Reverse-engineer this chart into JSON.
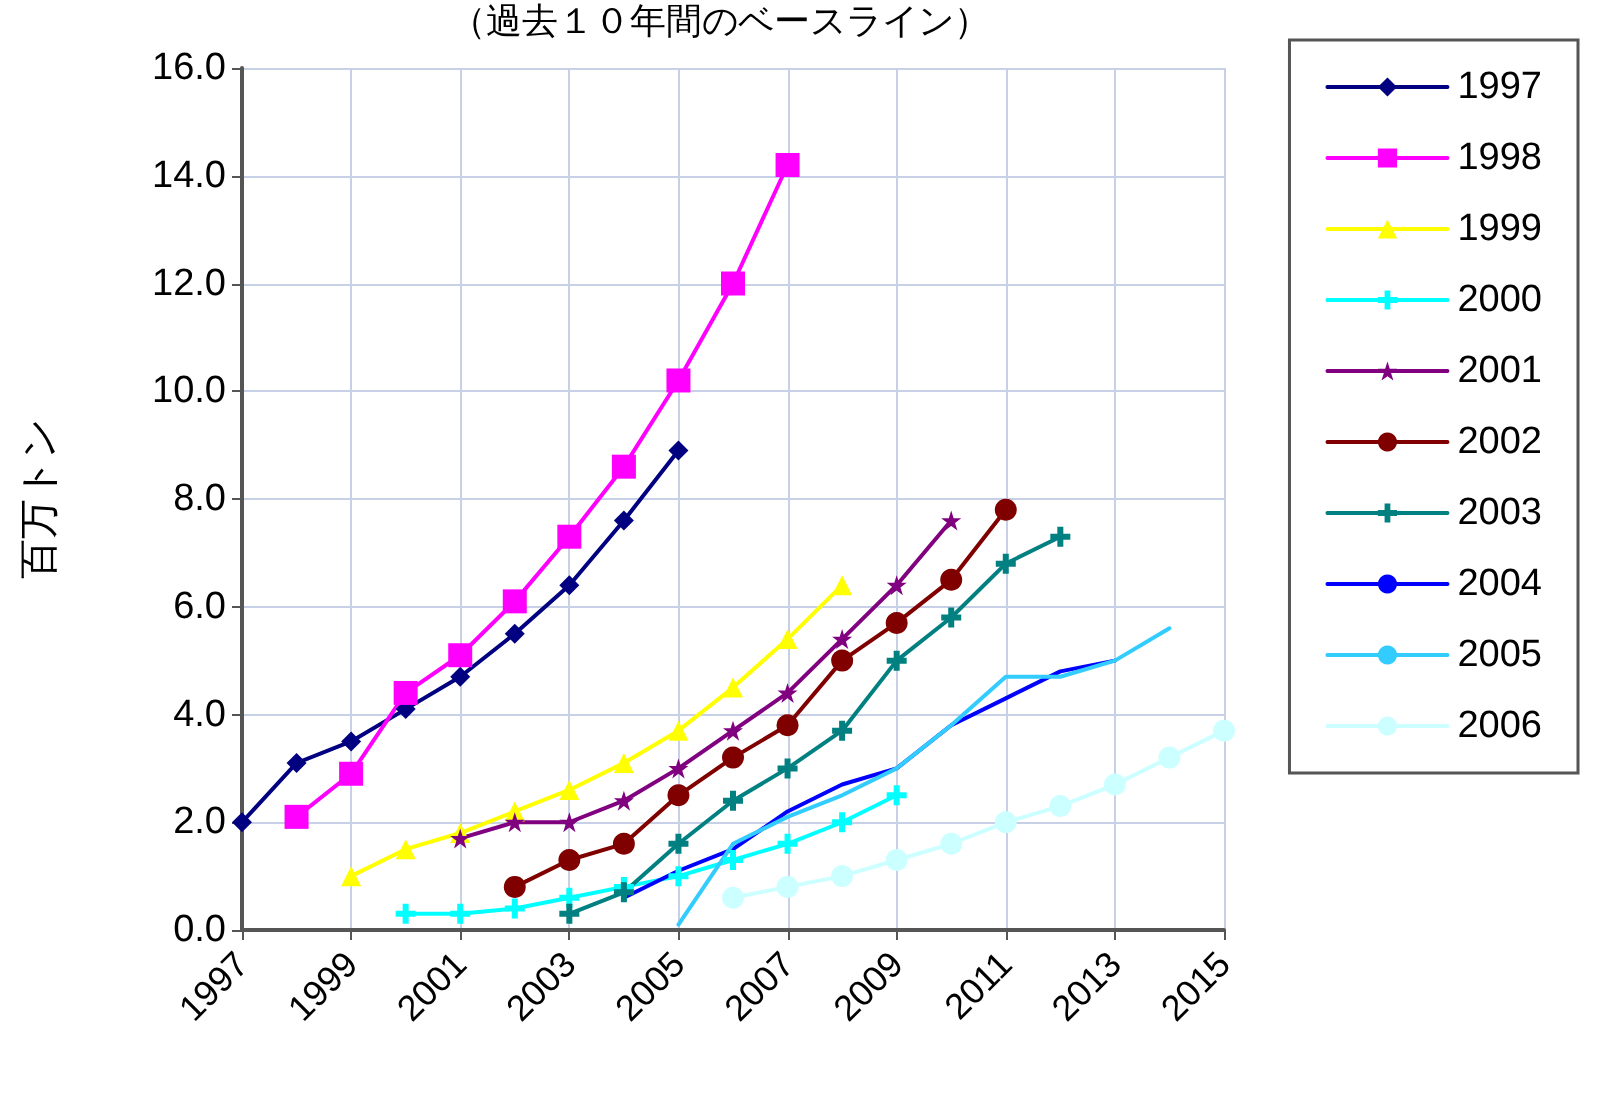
{
  "chart_data": {
    "type": "line",
    "title": "（過去１０年間のベースライン）",
    "ylabel": "百万トン",
    "xlim": [
      1997,
      2015
    ],
    "xticks": [
      1997,
      1999,
      2001,
      2003,
      2005,
      2007,
      2009,
      2011,
      2013,
      2015
    ],
    "ylim": [
      0,
      16
    ],
    "yticks": [
      {
        "value": 0,
        "label": "0.0"
      },
      {
        "value": 2,
        "label": "2.0"
      },
      {
        "value": 4,
        "label": "4.0"
      },
      {
        "value": 6,
        "label": "6.0"
      },
      {
        "value": 8,
        "label": "8.0"
      },
      {
        "value": 10,
        "label": "10.0"
      },
      {
        "value": 12,
        "label": "12.0"
      },
      {
        "value": 14,
        "label": "14.0"
      },
      {
        "value": 16,
        "label": "16.0"
      }
    ],
    "grid": true,
    "legend": "right",
    "line_style": "solid",
    "series": [
      {
        "name": "1997",
        "color": "#000080",
        "marker": "diamond",
        "x": [
          1997,
          1998,
          1999,
          2000,
          2001,
          2002,
          2003,
          2004,
          2005
        ],
        "values": [
          2.0,
          3.1,
          3.5,
          4.1,
          4.7,
          5.5,
          6.4,
          7.6,
          8.9
        ]
      },
      {
        "name": "1998",
        "color": "#ff00ff",
        "marker": "square",
        "x": [
          1998,
          1999,
          2000,
          2001,
          2002,
          2003,
          2004,
          2005,
          2006,
          2007
        ],
        "values": [
          2.1,
          2.9,
          4.4,
          5.1,
          6.1,
          7.3,
          8.6,
          10.2,
          12.0,
          14.2
        ]
      },
      {
        "name": "1999",
        "color": "#ffff00",
        "marker": "triangle",
        "x": [
          1999,
          2000,
          2001,
          2002,
          2003,
          2004,
          2005,
          2006,
          2007,
          2008
        ],
        "values": [
          1.0,
          1.5,
          1.8,
          2.2,
          2.6,
          3.1,
          3.7,
          4.5,
          5.4,
          6.4
        ]
      },
      {
        "name": "2000",
        "color": "#00ffff",
        "marker": "cross",
        "x": [
          2000,
          2001,
          2002,
          2003,
          2004,
          2005,
          2006,
          2007,
          2008,
          2009
        ],
        "values": [
          0.3,
          0.3,
          0.4,
          0.6,
          0.8,
          1.0,
          1.3,
          1.6,
          2.0,
          2.5
        ]
      },
      {
        "name": "2001",
        "color": "#800080",
        "marker": "star",
        "x": [
          2001,
          2002,
          2003,
          2004,
          2005,
          2006,
          2007,
          2008,
          2009,
          2010
        ],
        "values": [
          1.7,
          2.0,
          2.0,
          2.4,
          3.0,
          3.7,
          4.4,
          5.4,
          6.4,
          7.6
        ]
      },
      {
        "name": "2002",
        "color": "#800000",
        "marker": "circle",
        "x": [
          2002,
          2003,
          2004,
          2005,
          2006,
          2007,
          2008,
          2009,
          2010,
          2011
        ],
        "values": [
          0.8,
          1.3,
          1.6,
          2.5,
          3.2,
          3.8,
          5.0,
          5.7,
          6.5,
          7.8
        ]
      },
      {
        "name": "2003",
        "color": "#008080",
        "marker": "cross",
        "x": [
          2003,
          2004,
          2005,
          2006,
          2007,
          2008,
          2009,
          2010,
          2011,
          2012
        ],
        "values": [
          0.3,
          0.7,
          1.6,
          2.4,
          3.0,
          3.7,
          5.0,
          5.8,
          6.8,
          7.3
        ]
      },
      {
        "name": "2004",
        "color": "#0000ff",
        "marker": "none",
        "x": [
          2004,
          2005,
          2006,
          2007,
          2008,
          2009,
          2010,
          2011,
          2012,
          2013
        ],
        "values": [
          0.6,
          1.1,
          1.5,
          2.2,
          2.7,
          3.0,
          3.8,
          4.3,
          4.8,
          5.0
        ]
      },
      {
        "name": "2005",
        "color": "#33ccff",
        "marker": "none",
        "x": [
          2005,
          2006,
          2007,
          2008,
          2009,
          2010,
          2011,
          2012,
          2013,
          2014
        ],
        "values": [
          0.1,
          1.6,
          2.1,
          2.5,
          3.0,
          3.8,
          4.7,
          4.7,
          5.0,
          5.6
        ]
      },
      {
        "name": "2006",
        "color": "#ccffff",
        "marker": "circle",
        "x": [
          2006,
          2007,
          2008,
          2009,
          2010,
          2011,
          2012,
          2013,
          2014,
          2015
        ],
        "values": [
          0.6,
          0.8,
          1.0,
          1.3,
          1.6,
          2.0,
          2.3,
          2.7,
          3.2,
          3.7
        ]
      }
    ]
  }
}
